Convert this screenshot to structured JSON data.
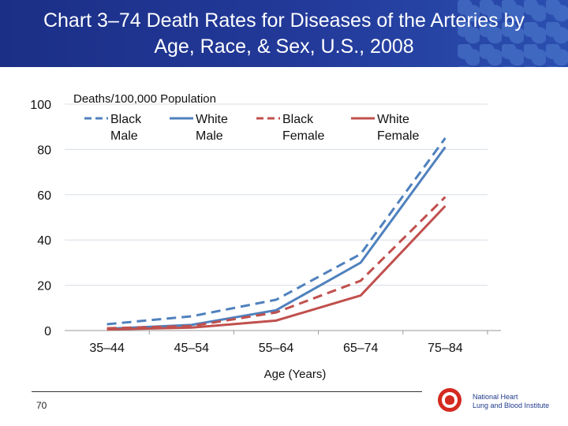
{
  "header": {
    "title": "Chart 3–74 Death Rates for Diseases of the Arteries by Age, Race, & Sex, U.S., 2008"
  },
  "footer": {
    "page_number": "70",
    "logo_line1": "National Heart",
    "logo_line2": "Lung and Blood Institute"
  },
  "chart_data": {
    "type": "line",
    "title": "Chart 3–74 Death Rates for Diseases of the Arteries by Age, Race, & Sex, U.S., 2008",
    "ylabel": "Deaths/100,000 Population",
    "xlabel": "Age (Years)",
    "categories": [
      "35–44",
      "45–54",
      "55–64",
      "65–74",
      "75–84"
    ],
    "ylim": [
      0,
      100
    ],
    "yticks": [
      0,
      20,
      40,
      60,
      80,
      100
    ],
    "grid": true,
    "legend": "top",
    "series": [
      {
        "name": "Black Male",
        "name_lines": [
          "Black",
          "Male"
        ],
        "color": "#4f81bd",
        "dash": true,
        "values": [
          2.8,
          6.3,
          13.6,
          33.8,
          85
        ]
      },
      {
        "name": "White Male",
        "name_lines": [
          "White",
          "Male"
        ],
        "color": "#4f81bd",
        "dash": false,
        "values": [
          0.8,
          2.5,
          9,
          30,
          81
        ]
      },
      {
        "name": "Black Female",
        "name_lines": [
          "Black",
          "Female"
        ],
        "color": "#c0504d",
        "dash": true,
        "values": [
          1,
          2,
          8,
          22,
          59
        ]
      },
      {
        "name": "White Female",
        "name_lines": [
          "White",
          "Female"
        ],
        "color": "#c0504d",
        "dash": false,
        "values": [
          0.5,
          1.3,
          4.4,
          15.5,
          55
        ]
      }
    ]
  }
}
